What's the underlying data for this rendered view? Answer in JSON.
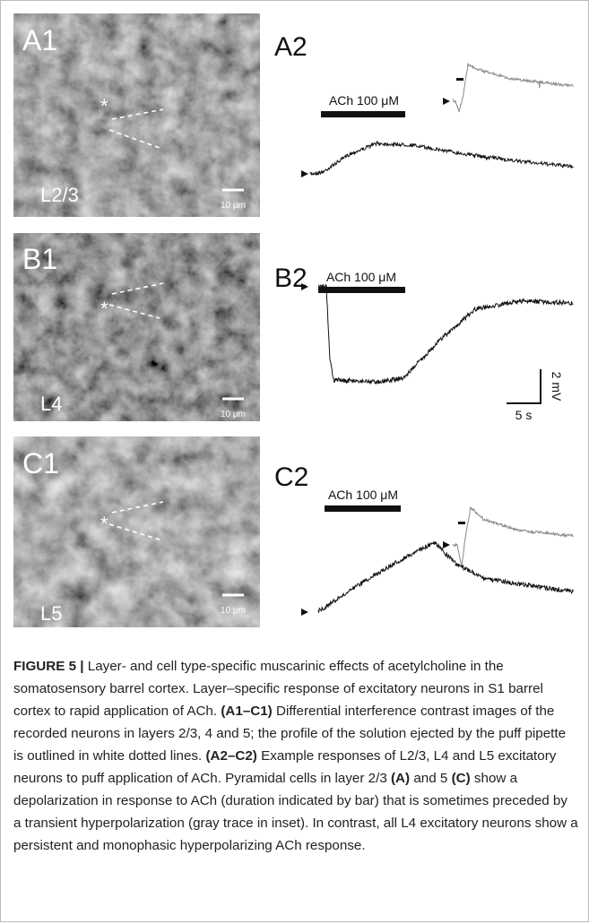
{
  "panels": {
    "a1": {
      "label": "A1",
      "marker": "*",
      "layer": "L2/3",
      "scale": "10 μm"
    },
    "b1": {
      "label": "B1",
      "marker": "*",
      "layer": "L4",
      "scale": "10 μm"
    },
    "c1": {
      "label": "C1",
      "marker": "*",
      "layer": "L5",
      "scale": "10 μm"
    }
  },
  "traces": {
    "a2": {
      "label": "A2",
      "stimulus": "ACh 100 μM"
    },
    "b2": {
      "label": "B2",
      "stimulus": "ACh 100 μM"
    },
    "c2": {
      "label": "C2",
      "stimulus": "ACh 100 μM"
    }
  },
  "scale_bar": {
    "voltage": "2 mV",
    "time": "5 s"
  },
  "caption": {
    "parts": [
      "FIGURE 5 |",
      "Layer- and cell type-specific muscarinic effects of acetylcholine in the somatosensory barrel cortex. Layer–specific response of excitatory neurons in S1 barrel cortex to rapid application of ACh.",
      "(A1–C1)",
      "Differential interference contrast images of the recorded neurons in layers 2/3, 4 and 5; the profile of the solution ejected by the puff pipette is outlined in white dotted lines.",
      "(A2–C2)",
      "Example responses of L2/3, L4 and L5 excitatory neurons to puff application of ACh. Pyramidal cells in layer 2/3",
      "(A)",
      "and 5",
      "(C)",
      "show a depolarization in response to ACh (duration indicated by bar) that is sometimes preceded by a transient hyperpolarization (gray trace in inset). In contrast, all L4 excitatory neurons show a persistent and monophasic hyperpolarizing ACh response."
    ]
  }
}
